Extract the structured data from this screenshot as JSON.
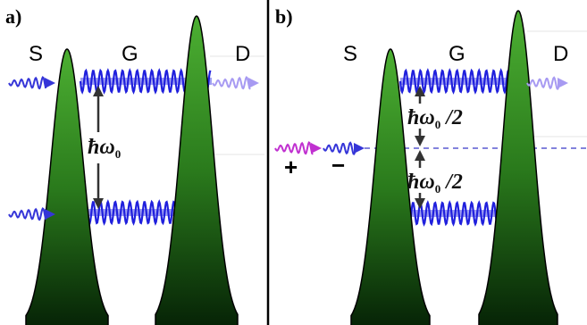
{
  "panels": {
    "a": {
      "tag": "a)",
      "regions": {
        "left": "S",
        "middle": "G",
        "right": "D"
      },
      "energy_label": {
        "hbar": "ħ",
        "omega": "ω",
        "sub": "0",
        "suffix": ""
      }
    },
    "b": {
      "tag": "b)",
      "regions": {
        "left": "S",
        "middle": "G",
        "right": "D"
      },
      "energy_label_upper": {
        "hbar": "ħ",
        "omega": "ω",
        "sub": "0",
        "suffix": " /2"
      },
      "energy_label_lower": {
        "hbar": "ħ",
        "omega": "ω",
        "sub": "0",
        "suffix": " /2"
      },
      "photon_signs": {
        "plus": "+",
        "minus": "−"
      }
    }
  },
  "colors": {
    "barrier_dark": "#062306",
    "barrier_light": "#4caf32",
    "wave": "#2020dd",
    "level": "#8e8ef0",
    "photon_in": "#3535d8",
    "photon_out": "#a79af2",
    "photon_plus": "#c030d0",
    "arrow": "#333333",
    "divider": "#000000"
  }
}
